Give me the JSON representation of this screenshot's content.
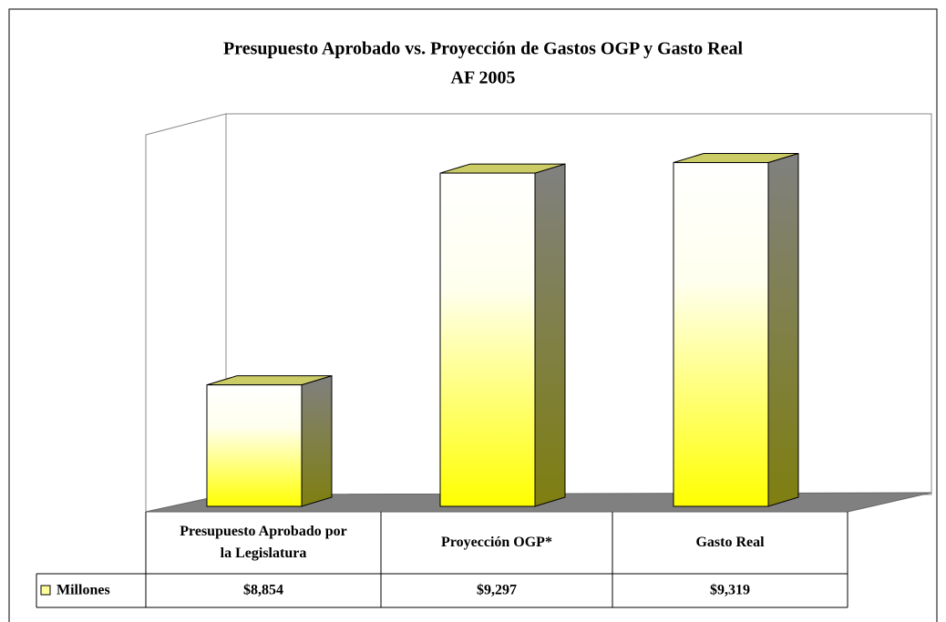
{
  "chart_data": {
    "type": "bar3d",
    "title": "Presupuesto Aprobado vs. Proyección de Gastos OGP y Gasto Real",
    "subtitle": "AF 2005",
    "categories": [
      "Presupuesto Aprobado por la Legislatura",
      "Proyección OGP*",
      "Gasto Real"
    ],
    "series": [
      {
        "name": "Millones",
        "color": "#ffff00",
        "values": [
          8854,
          9297,
          9319
        ],
        "value_labels": [
          "$8,854",
          "$9,297",
          "$9,319"
        ]
      }
    ],
    "ylim": [
      8600,
      9400
    ]
  }
}
